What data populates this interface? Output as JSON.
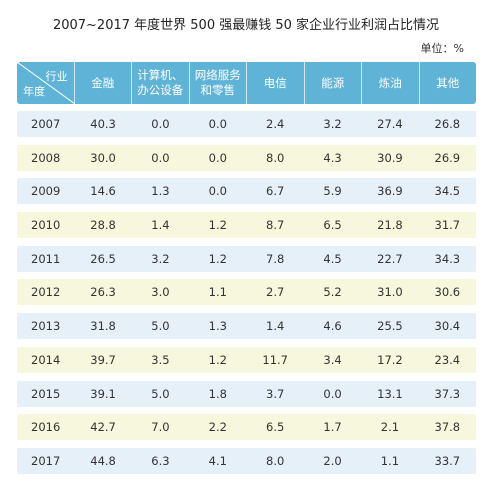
{
  "title": "2007~2017 年度世界 500 强最赚钱 50 家企业行业利润占比情况",
  "unit": "单位：%",
  "header": {
    "corner_top": "行业",
    "corner_bottom": "年度",
    "columns": [
      "金融",
      "计算机、\n办公设备",
      "网络服务\n和零售",
      "电信",
      "能源",
      "炼油",
      "其他"
    ]
  },
  "rows": [
    {
      "year": "2007",
      "values": [
        "40.3",
        "0.0",
        "0.0",
        "2.4",
        "3.2",
        "27.4",
        "26.8"
      ]
    },
    {
      "year": "2008",
      "values": [
        "30.0",
        "0.0",
        "0.0",
        "8.0",
        "4.3",
        "30.9",
        "26.9"
      ]
    },
    {
      "year": "2009",
      "values": [
        "14.6",
        "1.3",
        "0.0",
        "6.7",
        "5.9",
        "36.9",
        "34.5"
      ]
    },
    {
      "year": "2010",
      "values": [
        "28.8",
        "1.4",
        "1.2",
        "8.7",
        "6.5",
        "21.8",
        "31.7"
      ]
    },
    {
      "year": "2011",
      "values": [
        "26.5",
        "3.2",
        "1.2",
        "7.8",
        "4.5",
        "22.7",
        "34.3"
      ]
    },
    {
      "year": "2012",
      "values": [
        "26.3",
        "3.0",
        "1.1",
        "2.7",
        "5.2",
        "31.0",
        "30.6"
      ]
    },
    {
      "year": "2013",
      "values": [
        "31.8",
        "5.0",
        "1.3",
        "1.4",
        "4.6",
        "25.5",
        "30.4"
      ]
    },
    {
      "year": "2014",
      "values": [
        "39.7",
        "3.5",
        "1.2",
        "11.7",
        "3.4",
        "17.2",
        "23.4"
      ]
    },
    {
      "year": "2015",
      "values": [
        "39.1",
        "5.0",
        "1.8",
        "3.7",
        "0.0",
        "13.1",
        "37.3"
      ]
    },
    {
      "year": "2016",
      "values": [
        "42.7",
        "7.0",
        "2.2",
        "6.5",
        "1.7",
        "2.1",
        "37.8"
      ]
    },
    {
      "year": "2017",
      "values": [
        "44.8",
        "6.3",
        "4.1",
        "8.0",
        "2.0",
        "1.1",
        "33.7"
      ]
    }
  ],
  "colors": {
    "header": "#5fb3d6",
    "row_blue": "#e6f0f8",
    "row_yellow": "#f6f7dd"
  }
}
